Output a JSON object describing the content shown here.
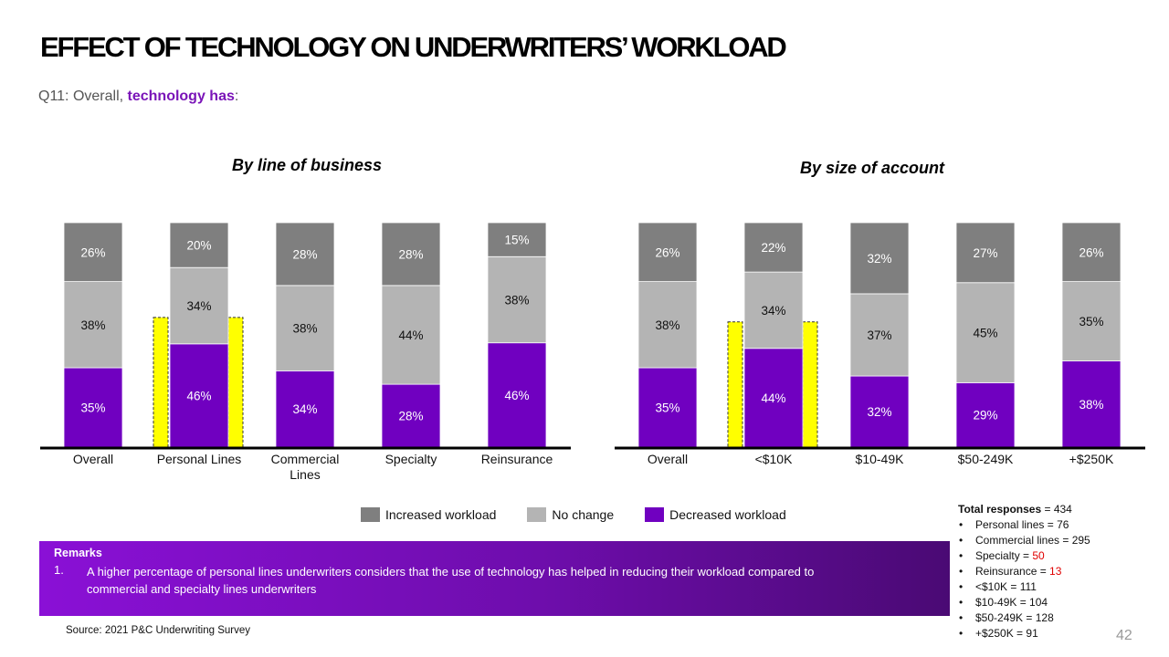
{
  "slide": {
    "title": "EFFECT OF TECHNOLOGY ON UNDERWRITERS’ WORKLOAD",
    "subtitle_prefix": "Q11: Overall, ",
    "subtitle_highlight": "technology has",
    "subtitle_suffix": ":",
    "page_number": "42"
  },
  "legend": {
    "items": [
      {
        "label": "Increased workload",
        "color": "#7f7f7f"
      },
      {
        "label": "No change",
        "color": "#b4b4b4"
      },
      {
        "label": "Decreased workload",
        "color": "#7000c0"
      }
    ]
  },
  "chart_data": [
    {
      "type": "bar",
      "stacked": true,
      "title": "By line of business",
      "categories": [
        "Overall",
        "Personal Lines",
        "Commercial Lines",
        "Specialty",
        "Reinsurance"
      ],
      "highlight_category": "Personal Lines",
      "ylim": [
        0,
        100
      ],
      "series": [
        {
          "name": "Decreased workload",
          "color": "#7000c0",
          "values": [
            35,
            46,
            34,
            28,
            46
          ]
        },
        {
          "name": "No change",
          "color": "#b4b4b4",
          "values": [
            38,
            34,
            38,
            44,
            38
          ]
        },
        {
          "name": "Increased workload",
          "color": "#7f7f7f",
          "values": [
            26,
            20,
            28,
            28,
            15
          ]
        }
      ]
    },
    {
      "type": "bar",
      "stacked": true,
      "title": "By size of account",
      "categories": [
        "Overall",
        "<$10K",
        "$10-49K",
        "$50-249K",
        "+$250K"
      ],
      "highlight_category": "<$10K",
      "ylim": [
        0,
        100
      ],
      "series": [
        {
          "name": "Decreased workload",
          "color": "#7000c0",
          "values": [
            35,
            44,
            32,
            29,
            38
          ]
        },
        {
          "name": "No change",
          "color": "#b4b4b4",
          "values": [
            38,
            34,
            37,
            45,
            35
          ]
        },
        {
          "name": "Increased workload",
          "color": "#7f7f7f",
          "values": [
            26,
            22,
            32,
            27,
            26
          ]
        }
      ]
    }
  ],
  "remarks": {
    "heading": "Remarks",
    "items": [
      {
        "number": "1.",
        "text": "A higher percentage of personal lines underwriters considers that the use of technology has helped in reducing their workload compared to commercial and specialty lines underwriters"
      }
    ]
  },
  "source": "Source: 2021 P&C Underwriting Survey",
  "responses": {
    "total_label": "Total responses",
    "total_value": " = 434",
    "items": [
      {
        "label": "Personal lines = ",
        "value": "76",
        "highlight": false
      },
      {
        "label": "Commercial lines = ",
        "value": "295",
        "highlight": false
      },
      {
        "label": "Specialty = ",
        "value": "50",
        "highlight": true
      },
      {
        "label": "Reinsurance = ",
        "value": "13",
        "highlight": true
      },
      {
        "label": "<$10K = ",
        "value": "111",
        "highlight": false
      },
      {
        "label": "$10-49K = ",
        "value": "104",
        "highlight": false
      },
      {
        "label": "$50-249K = ",
        "value": "128",
        "highlight": false
      },
      {
        "label": "+$250K = ",
        "value": "91",
        "highlight": false
      }
    ]
  }
}
